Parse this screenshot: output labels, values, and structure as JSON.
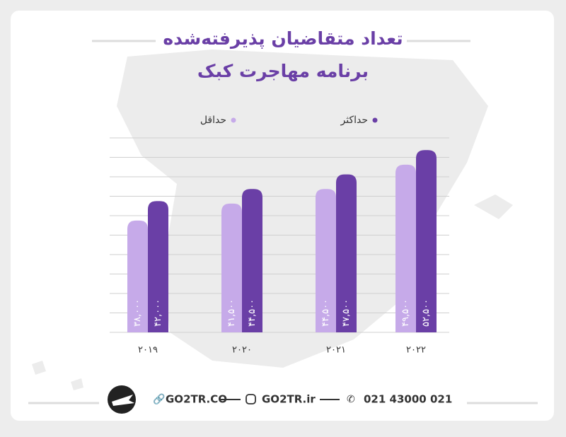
{
  "chart_data": {
    "type": "bar",
    "title": "تعداد متقاضیان پذیرفته‌شده",
    "subtitle": "برنامه مهاجرت کبک",
    "categories": [
      "۲۰۱۹",
      "۲۰۲۰",
      "۲۰۲۱",
      "۲۰۲۲"
    ],
    "series": [
      {
        "name": "حداقل",
        "color": "#c6aae9",
        "values": [
          38000,
          41500,
          44500,
          49500
        ],
        "value_labels": [
          "۳۸,۰۰۰",
          "۴۱,۵۰۰",
          "۴۴,۵۰۰",
          "۴۹,۵۰۰"
        ]
      },
      {
        "name": "حداکثر",
        "color": "#6a3fa6",
        "values": [
          42000,
          44500,
          47500,
          52500
        ],
        "value_labels": [
          "۴۲,۰۰۰",
          "۴۴,۵۰۰",
          "۴۷,۵۰۰",
          "۵۲,۵۰۰"
        ]
      }
    ],
    "ylim": [
      15000,
      55000
    ],
    "grid": true
  },
  "footer": {
    "website": "GO2TR.CO",
    "instagram": "GO2TR.ir",
    "phone": "021 43000 021"
  }
}
